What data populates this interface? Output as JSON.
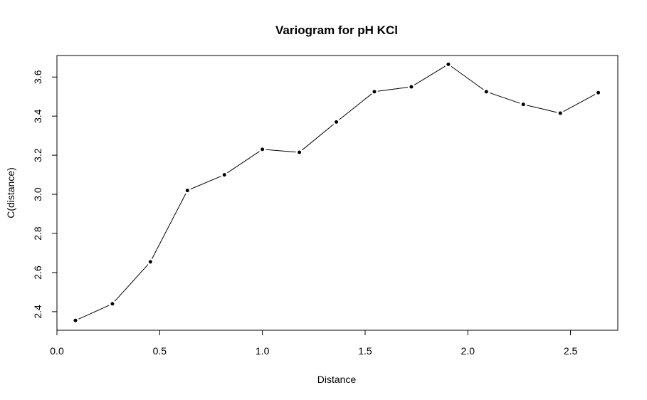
{
  "chart_data": {
    "type": "line",
    "title": "Variogram for pH KCl",
    "xlabel": "Distance",
    "ylabel": "C(distance)",
    "xlim": [
      0.0,
      2.73
    ],
    "ylim": [
      2.305,
      3.71
    ],
    "xticks": [
      0.0,
      0.5,
      1.0,
      1.5,
      2.0,
      2.5
    ],
    "xtick_labels": [
      "0.0",
      "0.5",
      "1.0",
      "1.5",
      "2.0",
      "2.5"
    ],
    "yticks": [
      2.4,
      2.6,
      2.8,
      3.0,
      3.2,
      3.4,
      3.6
    ],
    "ytick_labels": [
      "2.4",
      "2.6",
      "2.8",
      "3.0",
      "3.2",
      "3.4",
      "3.6"
    ],
    "grid": false,
    "series": [
      {
        "x": [
          0.09,
          0.27,
          0.455,
          0.635,
          0.815,
          1.0,
          1.18,
          1.36,
          1.545,
          1.725,
          1.905,
          2.09,
          2.27,
          2.45,
          2.635
        ],
        "y": [
          2.355,
          2.44,
          2.655,
          3.02,
          3.1,
          3.23,
          3.215,
          3.37,
          3.525,
          3.55,
          3.665,
          3.525,
          3.46,
          3.415,
          3.52
        ]
      }
    ],
    "colors": {
      "line": "#000000",
      "point": "#000000",
      "background": "#ffffff"
    }
  }
}
